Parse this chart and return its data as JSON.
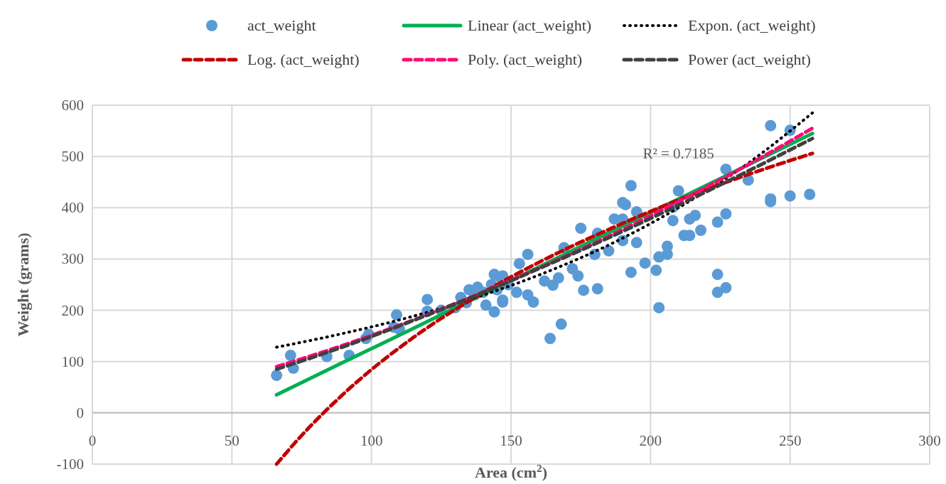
{
  "chart_data": {
    "type": "scatter",
    "xlabel": "Area (cm$^{2}$)",
    "ylabel": "Weight (grams)",
    "xlim": [
      0,
      300
    ],
    "xticks": [
      0,
      50,
      100,
      150,
      200,
      250,
      300
    ],
    "ylim": [
      -100,
      600
    ],
    "yticks": [
      -100,
      0,
      100,
      200,
      300,
      400,
      500,
      600
    ],
    "grid": true,
    "legend": "top",
    "annotations": [
      "R² = 0.7185"
    ],
    "series": [
      {
        "name": "act_weight",
        "marker": "circle",
        "color": "#5b9bd5",
        "x": [
          66,
          71,
          72,
          84,
          92,
          98,
          99,
          108,
          109,
          110,
          120,
          120,
          125,
          130,
          132,
          134,
          135,
          137,
          138,
          140,
          141,
          143,
          144,
          144,
          145,
          146,
          147,
          149,
          147,
          147,
          152,
          153,
          156,
          156,
          158,
          162,
          164,
          165,
          167,
          168,
          169,
          172,
          174,
          175,
          176,
          180,
          181,
          181,
          185,
          187,
          190,
          190,
          190,
          191,
          193,
          193,
          195,
          195,
          198,
          202,
          203,
          203,
          206,
          206,
          208,
          208,
          210,
          212,
          214,
          214,
          216,
          218,
          224,
          224,
          224,
          227,
          227,
          227,
          235,
          243,
          243,
          243,
          250,
          250,
          257
        ],
        "values": [
          73,
          112,
          87,
          110,
          112,
          145,
          153,
          167,
          191,
          163,
          221,
          198,
          200,
          205,
          225,
          215,
          240,
          230,
          245,
          235,
          210,
          250,
          270,
          197,
          240,
          265,
          220,
          250,
          267,
          216,
          235,
          291,
          309,
          230,
          216,
          257,
          145,
          249,
          263,
          173,
          322,
          281,
          267,
          360,
          239,
          309,
          242,
          350,
          316,
          378,
          378,
          336,
          410,
          406,
          274,
          443,
          332,
          392,
          292,
          278,
          304,
          205,
          325,
          309,
          375,
          401,
          433,
          346,
          346,
          378,
          385,
          356,
          372,
          270,
          235,
          388,
          244,
          475,
          454,
          560,
          417,
          412,
          551,
          423,
          426
        ]
      },
      {
        "name": "Linear (act_weight)",
        "type": "line",
        "line_style": "solid",
        "color": "#00b050",
        "x": [
          66,
          90,
          114,
          138,
          162,
          186,
          210,
          234,
          258
        ],
        "values": [
          35,
          99,
          162,
          226,
          290,
          354,
          417,
          481,
          545
        ]
      },
      {
        "name": "Expon. (act_weight)",
        "type": "line",
        "line_style": "dotted",
        "color": "#000000",
        "x": [
          66,
          90,
          114,
          138,
          162,
          186,
          210,
          234,
          258
        ],
        "values": [
          128,
          155,
          187,
          226,
          273,
          330,
          400,
          483,
          585
        ]
      },
      {
        "name": "Log. (act_weight)",
        "type": "line",
        "line_style": "dashed",
        "color": "#c00000",
        "x": [
          66,
          75,
          90,
          114,
          138,
          162,
          186,
          210,
          234,
          258
        ],
        "values": [
          -100,
          -44,
          37,
          143,
          228,
          299,
          360,
          415,
          463,
          506
        ]
      },
      {
        "name": "Poly. (act_weight)",
        "type": "line",
        "line_style": "dashed",
        "color": "#ff0a78",
        "x": [
          66,
          90,
          114,
          138,
          162,
          186,
          210,
          234,
          258
        ],
        "values": [
          90,
          132,
          179,
          231,
          287,
          347,
          412,
          481,
          555
        ]
      },
      {
        "name": "Power (act_weight)",
        "type": "line",
        "line_style": "dashed",
        "color": "#404040",
        "x": [
          66,
          90,
          114,
          138,
          162,
          186,
          210,
          234,
          258
        ],
        "values": [
          85,
          129,
          178,
          230,
          286,
          344,
          405,
          469,
          535
        ]
      }
    ]
  }
}
